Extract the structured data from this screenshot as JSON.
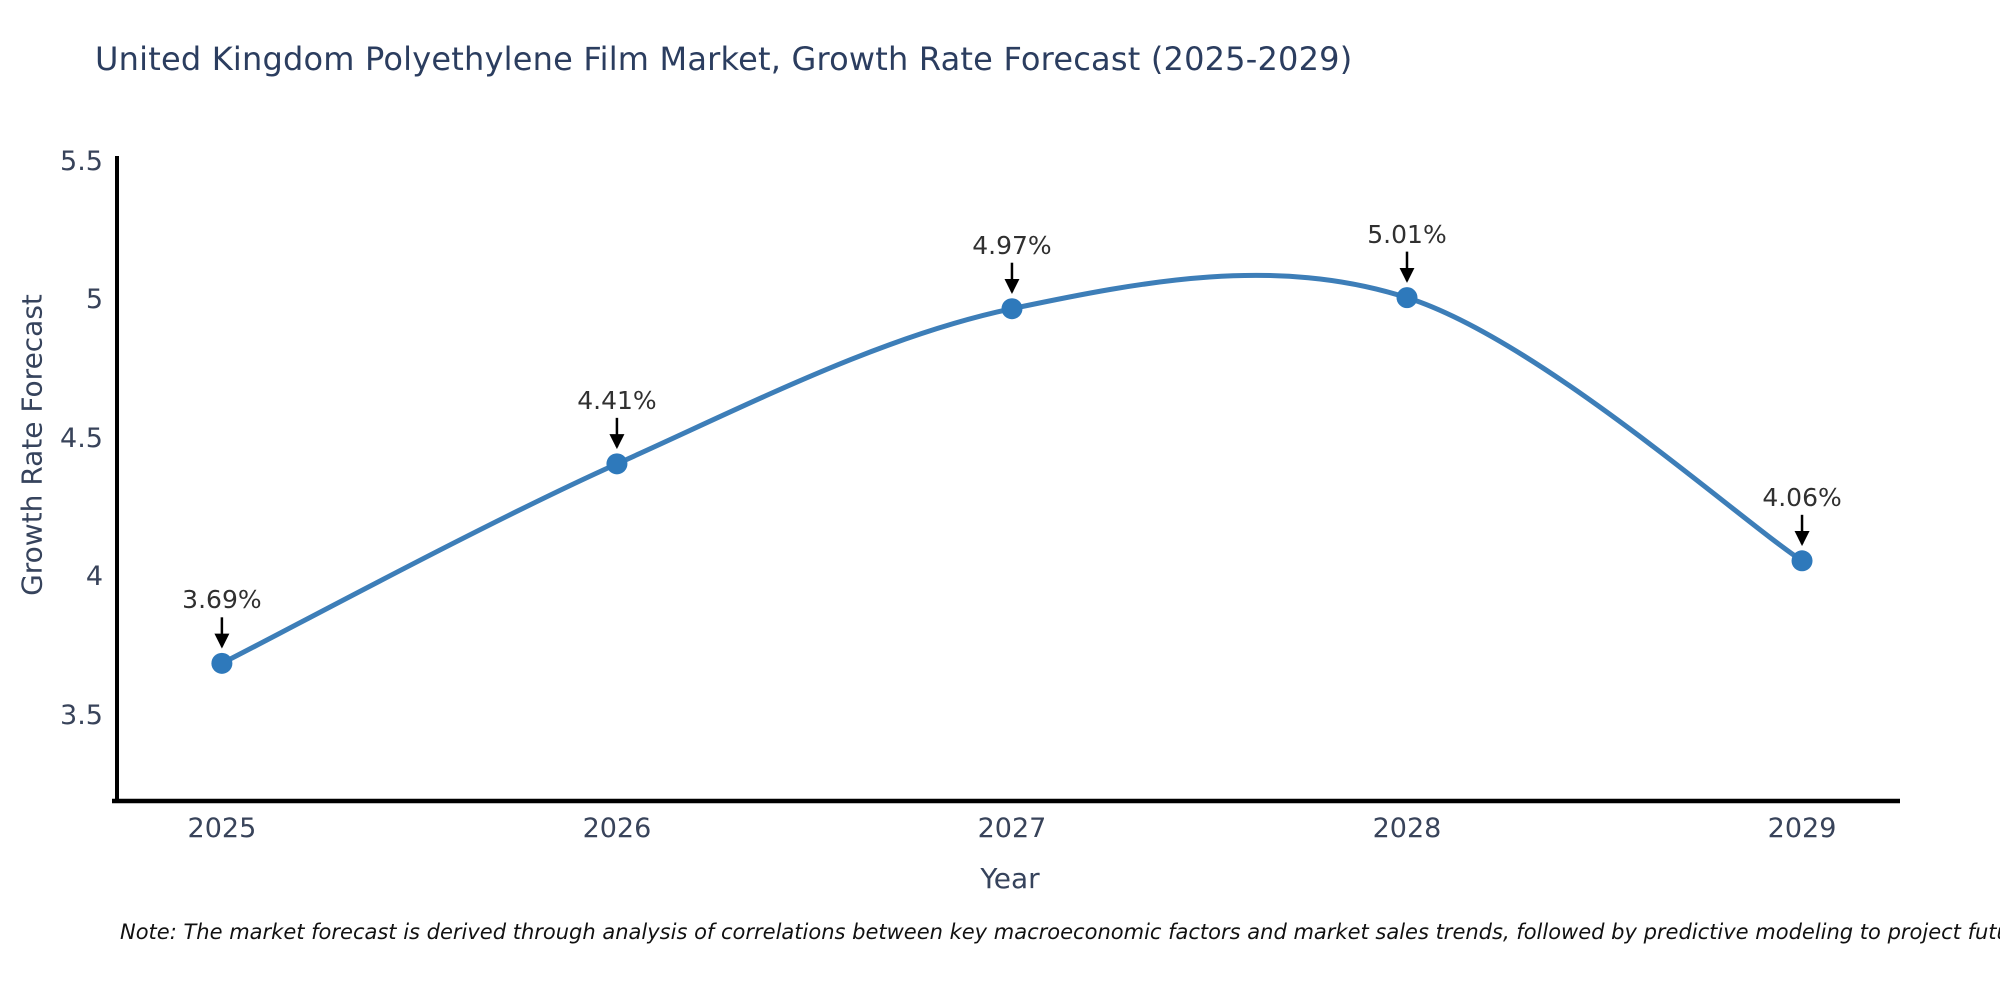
{
  "chart_data": {
    "type": "line",
    "title": "United Kingdom Polyethylene Film Market, Growth Rate Forecast (2025-2029)",
    "xlabel": "Year",
    "ylabel": "Growth Rate Forecast",
    "x": [
      2025,
      2026,
      2027,
      2028,
      2029
    ],
    "values": [
      3.69,
      4.41,
      4.97,
      5.01,
      4.06
    ],
    "point_labels": [
      "3.69%",
      "4.41%",
      "4.97%",
      "5.01%",
      "4.06%"
    ],
    "xticks": {
      "values": [
        2025,
        2026,
        2027,
        2028,
        2029
      ],
      "labels": [
        "2025",
        "2026",
        "2027",
        "2028",
        "2029"
      ]
    },
    "yticks": {
      "values": [
        3.5,
        4,
        4.5,
        5,
        5.5
      ],
      "labels": [
        "3.5",
        "4",
        "4.5",
        "5",
        "5.5"
      ]
    },
    "xlim": [
      2024.737,
      2029.248
    ],
    "ylim": [
      3.193,
      5.514
    ],
    "grid": false,
    "legend": "none",
    "line_color": "#3d7eb8",
    "marker_color": "#2e79bb",
    "axis_color": "#000000",
    "annotation_arrow_color": "#000000",
    "note": "Note: The market forecast is derived through analysis of correlations between key macroeconomic factors and market sales trends, followed by predictive modeling to project future sales"
  }
}
